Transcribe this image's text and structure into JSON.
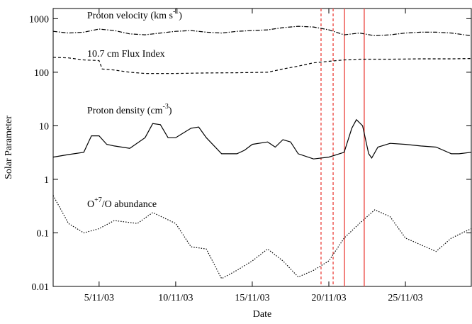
{
  "chart_data": {
    "type": "line",
    "xlabel": "Date",
    "ylabel": "Solar Parameter",
    "log_y": true,
    "xlim": [
      2.0,
      29.3
    ],
    "ylim": [
      0.01,
      1550
    ],
    "xticks": [
      {
        "value": 5,
        "label": "5/11/03"
      },
      {
        "value": 10,
        "label": "10/11/03"
      },
      {
        "value": 15,
        "label": "15/11/03"
      },
      {
        "value": 20,
        "label": "20/11/03"
      },
      {
        "value": 25,
        "label": "25/11/03"
      }
    ],
    "yticks": [
      0.01,
      0.1,
      1,
      10,
      100,
      1000
    ],
    "vlines": [
      {
        "x": 19.49,
        "style": "dashed",
        "color": "#ee5a55"
      },
      {
        "x": 20.28,
        "style": "dashed",
        "color": "#ee5a55"
      },
      {
        "x": 21.02,
        "style": "solid",
        "color": "#ee5a55"
      },
      {
        "x": 22.31,
        "style": "solid",
        "color": "#ee5a55"
      }
    ],
    "series": [
      {
        "label": {
          "pre": "Proton velocity (km s",
          "sup": "-1",
          "post": ")"
        },
        "color": "#000000",
        "dash": "dashdot",
        "x": [
          2,
          3,
          4,
          5,
          6,
          7,
          8,
          9,
          10,
          11,
          12,
          13,
          14,
          15,
          16,
          17,
          18,
          19,
          20,
          21,
          22,
          23,
          24,
          25,
          26,
          27,
          28,
          29.3
        ],
        "values": [
          580,
          540,
          560,
          640,
          600,
          520,
          500,
          540,
          580,
          600,
          560,
          540,
          580,
          600,
          620,
          680,
          720,
          700,
          620,
          500,
          540,
          480,
          500,
          540,
          560,
          560,
          540,
          480
        ]
      },
      {
        "label": {
          "pre": "10.7 cm Flux Index",
          "sup": "",
          "post": ""
        },
        "color": "#000000",
        "dash": "dashed",
        "x": [
          2,
          3,
          4,
          5,
          5.2,
          6,
          7,
          8,
          10,
          12,
          14,
          16,
          17,
          18,
          19,
          20,
          21,
          22,
          24,
          26,
          28,
          29.3
        ],
        "values": [
          190,
          185,
          170,
          165,
          115,
          110,
          100,
          95,
          95,
          97,
          98,
          100,
          115,
          130,
          150,
          160,
          170,
          175,
          175,
          178,
          178,
          180
        ]
      },
      {
        "label": {
          "pre": "Proton density (cm",
          "sup": "-3",
          "post": ")"
        },
        "color": "#000000",
        "dash": "solid",
        "x": [
          2,
          3,
          4,
          4.5,
          5,
          5.5,
          6,
          7,
          8,
          8.5,
          9,
          9.5,
          10,
          11,
          11.5,
          12,
          13,
          14,
          14.5,
          15,
          16,
          16.5,
          17,
          17.5,
          18,
          19,
          20,
          21,
          21.5,
          21.8,
          22.2,
          22.6,
          22.8,
          23.2,
          24,
          25,
          26,
          27,
          28,
          28.5,
          29.3
        ],
        "values": [
          2.6,
          2.9,
          3.2,
          6.5,
          6.5,
          4.5,
          4.2,
          3.8,
          6,
          11,
          10.5,
          6,
          6,
          9,
          9.5,
          6,
          3,
          3,
          3.5,
          4.5,
          5,
          4,
          5.5,
          5,
          3,
          2.4,
          2.6,
          3.2,
          9,
          13,
          10,
          3,
          2.5,
          4,
          4.7,
          4.5,
          4.2,
          4,
          3,
          3,
          3.2
        ]
      },
      {
        "label": {
          "pre": "O",
          "sup": "+7",
          "post": "/O abundance"
        },
        "color": "#000000",
        "dash": "dotted",
        "x": [
          2,
          3,
          4,
          5,
          6,
          7.5,
          8.5,
          10,
          11,
          12,
          13,
          14,
          15,
          16,
          17,
          18,
          19,
          20,
          21,
          22,
          23,
          24,
          25,
          26,
          27,
          28,
          29.3
        ],
        "values": [
          0.5,
          0.15,
          0.1,
          0.12,
          0.17,
          0.15,
          0.24,
          0.15,
          0.055,
          0.05,
          0.014,
          0.02,
          0.03,
          0.05,
          0.03,
          0.015,
          0.02,
          0.03,
          0.08,
          0.15,
          0.27,
          0.2,
          0.08,
          0.06,
          0.045,
          0.08,
          0.12
        ]
      }
    ]
  }
}
